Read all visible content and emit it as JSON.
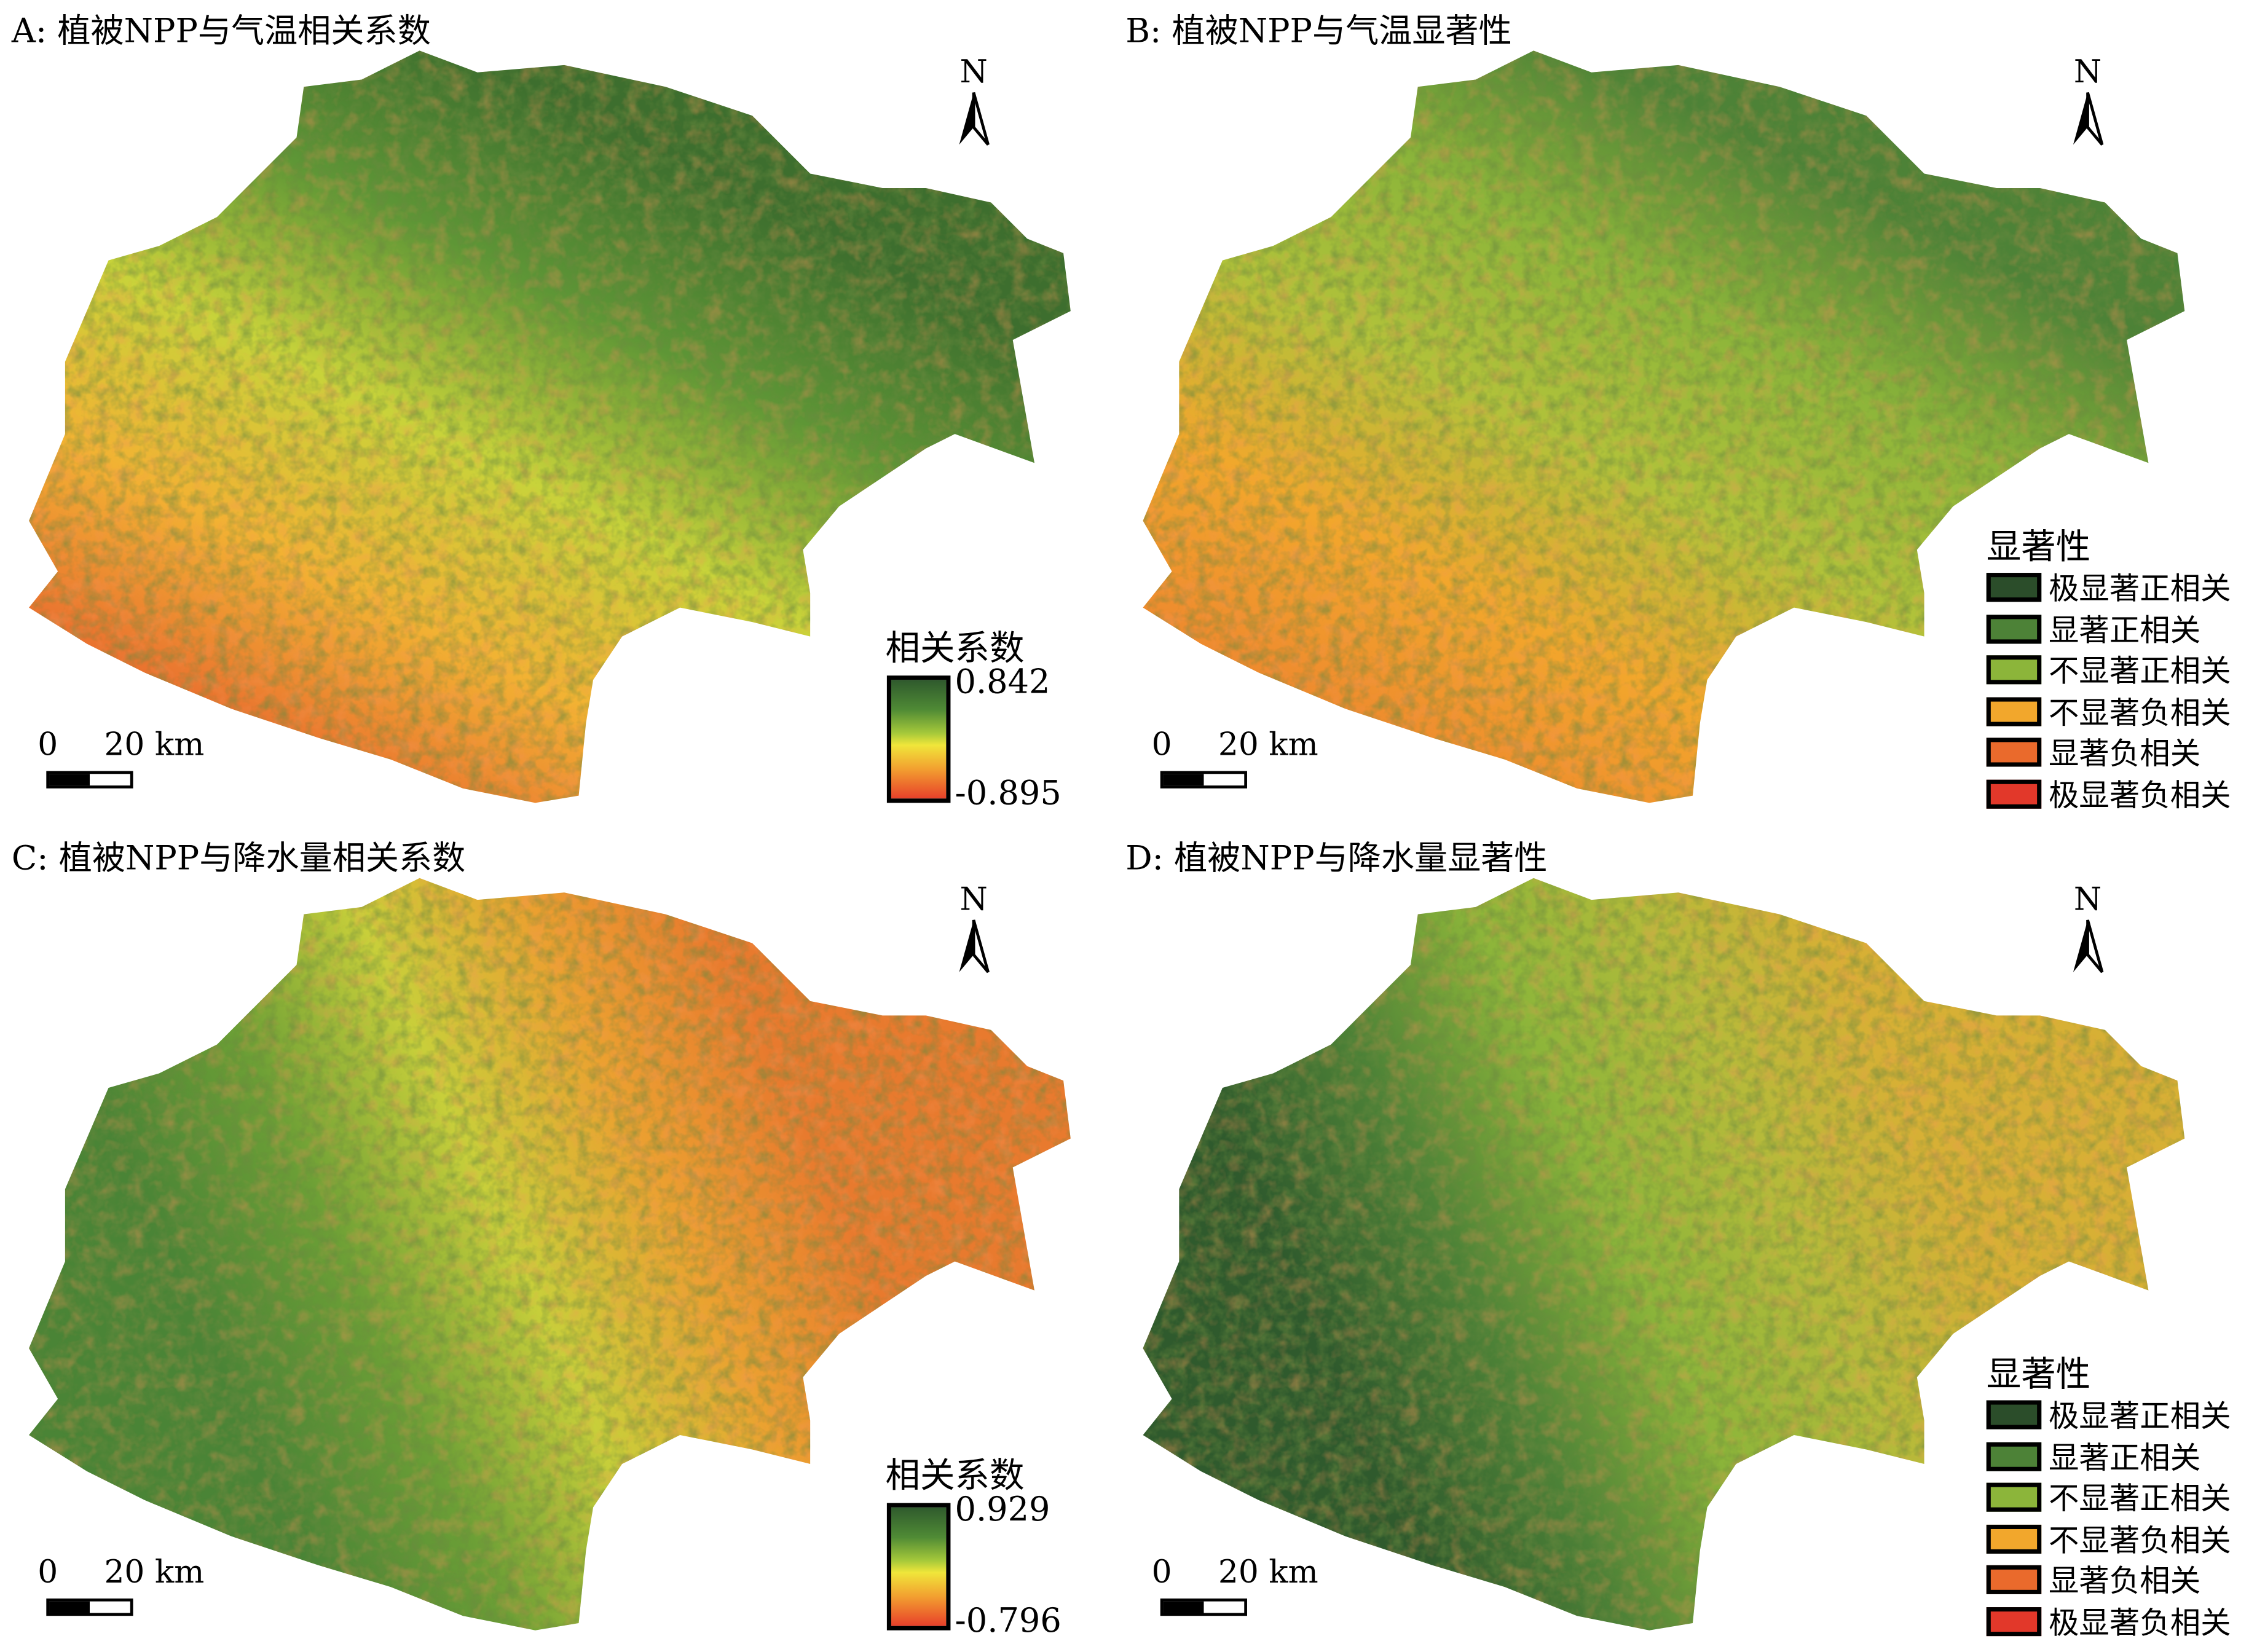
{
  "panels": [
    {
      "id": "A",
      "title": "A: 植被NPP与气温相关系数",
      "kind": "correlation",
      "legend": {
        "title": "相关系数",
        "max": "0.842",
        "min": "-0.895"
      },
      "north": "N",
      "scale": {
        "zero": "0",
        "distance": "20 km"
      }
    },
    {
      "id": "B",
      "title": "B: 植被NPP与气温显著性",
      "kind": "significance",
      "legend": {
        "title": "显著性"
      },
      "north": "N",
      "scale": {
        "zero": "0",
        "distance": "20 km"
      }
    },
    {
      "id": "C",
      "title": "C: 植被NPP与降水量相关系数",
      "kind": "correlation",
      "legend": {
        "title": "相关系数",
        "max": "0.929",
        "min": "-0.796"
      },
      "north": "N",
      "scale": {
        "zero": "0",
        "distance": "20 km"
      }
    },
    {
      "id": "D",
      "title": "D: 植被NPP与降水量显著性",
      "kind": "significance",
      "legend": {
        "title": "显著性"
      },
      "north": "N",
      "scale": {
        "zero": "0",
        "distance": "20 km"
      }
    }
  ],
  "significance_classes": [
    {
      "label": "极显著正相关",
      "color": "#2b4d2a"
    },
    {
      "label": "显著正相关",
      "color": "#4d8237"
    },
    {
      "label": "不显著正相关",
      "color": "#8cb53a"
    },
    {
      "label": "不显著负相关",
      "color": "#f2a72c"
    },
    {
      "label": "显著负相关",
      "color": "#ea6a2c"
    },
    {
      "label": "极显著负相关",
      "color": "#e2382a"
    }
  ],
  "ramp_colors": [
    "#2f5a2d",
    "#4f8a35",
    "#a6c93a",
    "#f0e63a",
    "#f2a030",
    "#e8402a"
  ]
}
